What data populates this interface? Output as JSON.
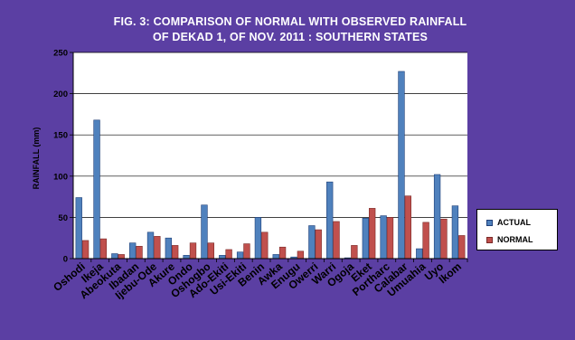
{
  "header": {
    "title_line1": "FIG. 3: COMPARISON OF NORMAL  WITH OBSERVED RAINFALL",
    "title_line2": "OF  DEKAD 1, OF NOV. 2011 : SOUTHERN STATES"
  },
  "colors": {
    "frame_background": "#5b3fa3",
    "actual_fill": "#4f81bd",
    "actual_stroke": "#1f3f78",
    "normal_fill": "#c0504d",
    "normal_stroke": "#7a2a28"
  },
  "chart_data": {
    "type": "bar",
    "title": "FIG. 3: COMPARISON OF NORMAL  WITH OBSERVED RAINFALL OF  DEKAD 1, OF NOV. 2011 : SOUTHERN STATES",
    "xlabel": "",
    "ylabel": "RAINFALL (mm)",
    "ylim": [
      0,
      250
    ],
    "yticks": [
      0,
      50,
      100,
      150,
      200,
      250
    ],
    "grid": true,
    "legend_position": "right",
    "categories": [
      "Oshodi",
      "Ikeja",
      "Abeokuta",
      "Ibadan",
      "Ijebu-Ode",
      "Akure",
      "Ondo",
      "Oshogbo",
      "Ado-Ekiti",
      "Usi-Ekiti",
      "Benin",
      "Awka",
      "Enugu",
      "Owerri",
      "Warri",
      "Ogoja",
      "Eket",
      "Portharc",
      "Calabar",
      "Umuahia",
      "Uyo",
      "Ikom"
    ],
    "series": [
      {
        "name": "ACTUAL",
        "values": [
          74,
          168,
          6,
          19,
          32,
          25,
          4,
          65,
          4,
          8,
          50,
          5,
          2,
          40,
          93,
          1,
          49,
          52,
          227,
          12,
          102,
          64
        ]
      },
      {
        "name": "NORMAL",
        "values": [
          22,
          24,
          5,
          15,
          27,
          16,
          19,
          19,
          11,
          18,
          32,
          14,
          9,
          35,
          45,
          16,
          61,
          50,
          76,
          44,
          48,
          28
        ]
      }
    ]
  }
}
